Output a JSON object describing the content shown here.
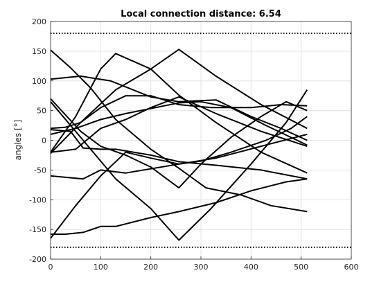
{
  "chart_data": {
    "type": "line",
    "title": "Local connection distance: 6.54",
    "xlabel": "",
    "ylabel": "angles [°]",
    "xlim": [
      0,
      600
    ],
    "ylim": [
      -200,
      200
    ],
    "xticks": [
      0,
      100,
      200,
      300,
      400,
      500,
      600
    ],
    "yticks": [
      -200,
      -150,
      -100,
      -50,
      0,
      50,
      100,
      150,
      200
    ],
    "grid": true,
    "line_color": "#000000",
    "reference_lines": [
      {
        "y": 180,
        "style": "dotted"
      },
      {
        "y": -180,
        "style": "dotted"
      }
    ],
    "series": [
      {
        "x": [
          0,
          40,
          80,
          130,
          200,
          256,
          310,
          380,
          440,
          512
        ],
        "values": [
          152,
          122,
          88,
          35,
          -15,
          -47,
          -80,
          -92,
          -110,
          -120
        ]
      },
      {
        "x": [
          0,
          50,
          100,
          130,
          200,
          256,
          330,
          420,
          512
        ],
        "values": [
          -20,
          40,
          120,
          146,
          120,
          76,
          30,
          -20,
          -55
        ]
      },
      {
        "x": [
          0,
          60,
          120,
          200,
          256,
          330,
          400,
          460,
          512
        ],
        "values": [
          103,
          108,
          100,
          73,
          65,
          68,
          40,
          20,
          0
        ]
      },
      {
        "x": [
          0,
          50,
          100,
          150,
          200,
          256,
          300,
          360,
          430,
          480,
          512
        ],
        "values": [
          -165,
          -110,
          -60,
          -20,
          -30,
          -40,
          -35,
          -20,
          0,
          20,
          40
        ]
      },
      {
        "x": [
          0,
          60,
          130,
          200,
          256,
          330,
          420,
          512
        ],
        "values": [
          -22,
          30,
          85,
          120,
          153,
          108,
          60,
          20
        ]
      },
      {
        "x": [
          0,
          40,
          65,
          100,
          130,
          200,
          256,
          330,
          420,
          512
        ],
        "values": [
          18,
          15,
          -13,
          -15,
          -15,
          -25,
          -36,
          -42,
          -50,
          -65
        ]
      },
      {
        "x": [
          0,
          65,
          100,
          150,
          256,
          330,
          420,
          512
        ],
        "values": [
          -60,
          -65,
          -50,
          -55,
          -40,
          -30,
          -10,
          10
        ]
      },
      {
        "x": [
          0,
          30,
          65,
          100,
          130,
          200,
          256,
          330,
          400,
          470,
          512
        ],
        "values": [
          -158,
          -158,
          -155,
          -145,
          -145,
          -130,
          -120,
          -105,
          -85,
          -70,
          -65
        ]
      },
      {
        "x": [
          0,
          50,
          100,
          150,
          256,
          300,
          360,
          430,
          512
        ],
        "values": [
          10,
          20,
          35,
          45,
          63,
          65,
          55,
          25,
          -8
        ]
      },
      {
        "x": [
          0,
          65,
          130,
          200,
          256,
          320,
          400,
          470,
          512
        ],
        "values": [
          65,
          0,
          -65,
          -115,
          -168,
          -115,
          -40,
          30,
          85
        ]
      },
      {
        "x": [
          0,
          30,
          60,
          100,
          150,
          200,
          256,
          320,
          400,
          460,
          512
        ],
        "values": [
          20,
          22,
          30,
          55,
          75,
          75,
          60,
          55,
          55,
          60,
          58
        ]
      },
      {
        "x": [
          0,
          50,
          100,
          150,
          200,
          256,
          330,
          420,
          512
        ],
        "values": [
          -20,
          -15,
          20,
          35,
          55,
          73,
          45,
          15,
          -10
        ]
      },
      {
        "x": [
          0,
          60,
          100,
          150,
          200,
          256,
          300,
          360,
          420,
          470,
          512
        ],
        "values": [
          70,
          15,
          -10,
          -25,
          -45,
          -80,
          -40,
          5,
          40,
          65,
          50
        ]
      }
    ]
  }
}
